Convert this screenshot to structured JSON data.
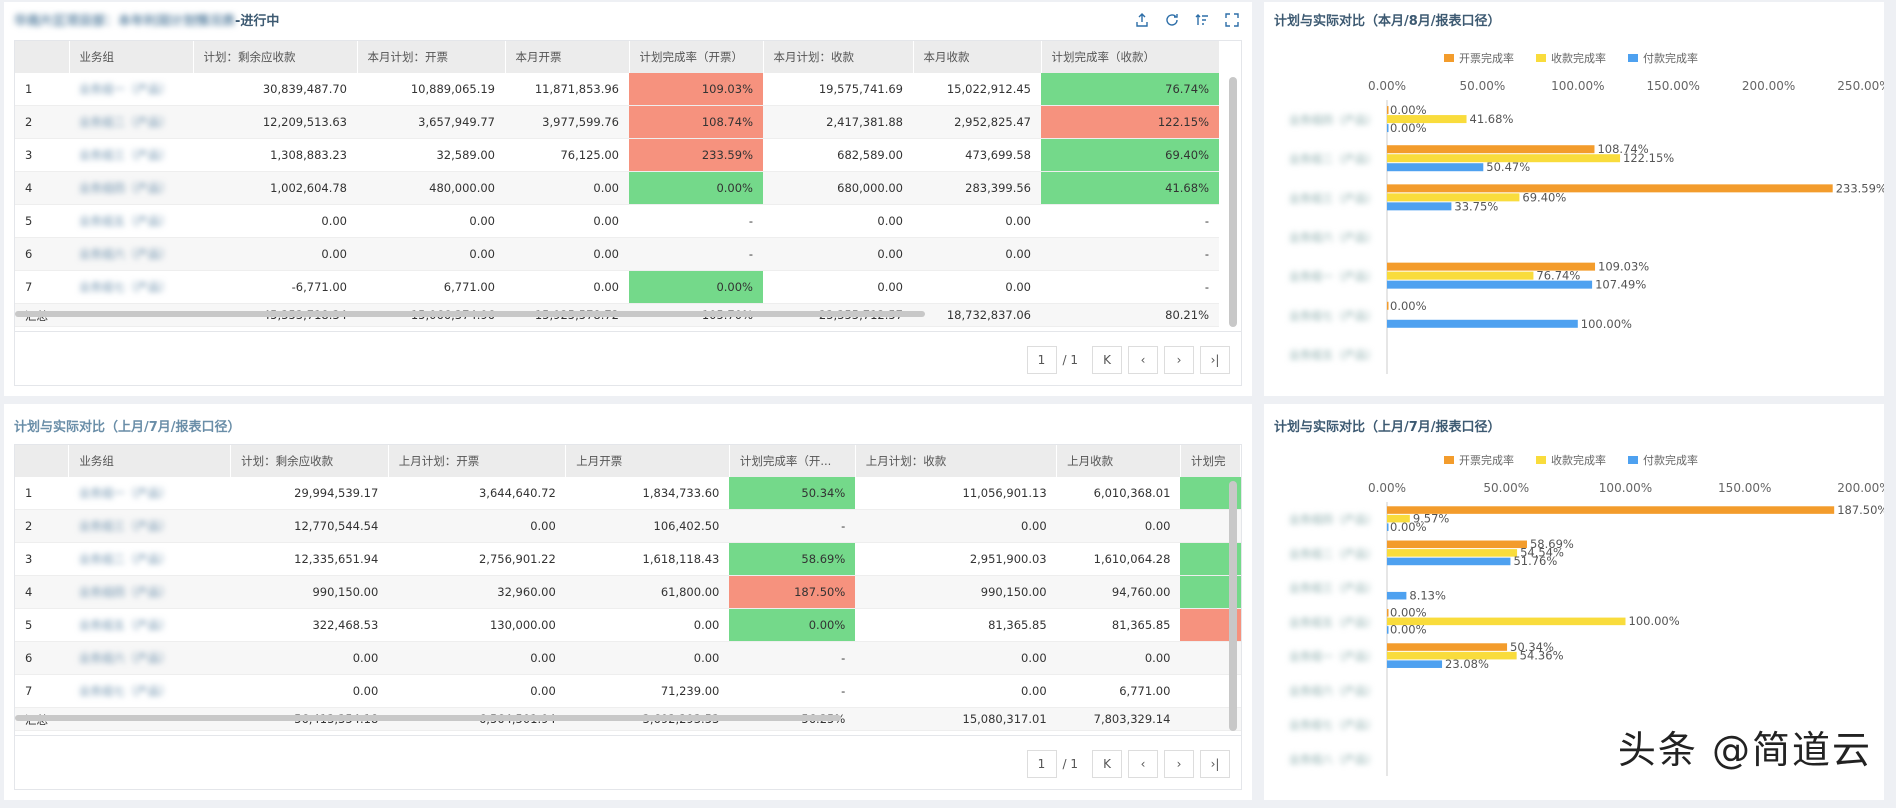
{
  "top_table": {
    "title_prefix": "华南片区项目部：本年利润计划情况表",
    "title_suffix": "-进行中",
    "headers": [
      "",
      "业务组",
      "计划：剩余应收款",
      "本月计划：开票",
      "本月开票",
      "计划完成率（开票）",
      "本月计划：收款",
      "本月收款",
      "计划完成率（收款）"
    ],
    "rows": [
      {
        "idx": "1",
        "group": "业务组一（产品）",
        "v1": "30,839,487.70",
        "v2": "10,889,065.19",
        "v3": "11,871,853.96",
        "r1": "109.03%",
        "r1c": "red",
        "v4": "19,575,741.69",
        "v5": "15,022,912.45",
        "r2": "76.74%",
        "r2c": "green"
      },
      {
        "idx": "2",
        "group": "业务组二（产品）",
        "v1": "12,209,513.63",
        "v2": "3,657,949.77",
        "v3": "3,977,599.76",
        "r1": "108.74%",
        "r1c": "red",
        "v4": "2,417,381.88",
        "v5": "2,952,825.47",
        "r2": "122.15%",
        "r2c": "red"
      },
      {
        "idx": "3",
        "group": "业务组三（产品）",
        "v1": "1,308,883.23",
        "v2": "32,589.00",
        "v3": "76,125.00",
        "r1": "233.59%",
        "r1c": "red",
        "v4": "682,589.00",
        "v5": "473,699.58",
        "r2": "69.40%",
        "r2c": "green"
      },
      {
        "idx": "4",
        "group": "业务组四（产品）",
        "v1": "1,002,604.78",
        "v2": "480,000.00",
        "v3": "0.00",
        "r1": "0.00%",
        "r1c": "green",
        "v4": "680,000.00",
        "v5": "283,399.56",
        "r2": "41.68%",
        "r2c": "green"
      },
      {
        "idx": "5",
        "group": "业务组五（产品）",
        "v1": "0.00",
        "v2": "0.00",
        "v3": "0.00",
        "r1": "-",
        "r1c": "",
        "v4": "0.00",
        "v5": "0.00",
        "r2": "-",
        "r2c": ""
      },
      {
        "idx": "6",
        "group": "业务组六（产品）",
        "v1": "0.00",
        "v2": "0.00",
        "v3": "0.00",
        "r1": "-",
        "r1c": "",
        "v4": "0.00",
        "v5": "0.00",
        "r2": "-",
        "r2c": ""
      },
      {
        "idx": "7",
        "group": "业务组七（产品）",
        "v1": "-6,771.00",
        "v2": "6,771.00",
        "v3": "0.00",
        "r1": "0.00%",
        "r1c": "green",
        "v4": "0.00",
        "v5": "0.00",
        "r2": "-",
        "r2c": ""
      }
    ],
    "total": {
      "idx": "汇总",
      "group": "",
      "v1": "45,353,718.34",
      "v2": "15,066,374.96",
      "v3": "15,925,578.72",
      "r1": "105.70%",
      "v4": "23,355,712.57",
      "v5": "18,732,837.06",
      "r2": "80.21%"
    },
    "pager": {
      "page": "1",
      "total": "/ 1"
    }
  },
  "bottom_table": {
    "title": "计划与实际对比（上月/7月/报表口径）",
    "headers": [
      "",
      "业务组",
      "计划：剩余应收款",
      "上月计划：开票",
      "上月开票",
      "计划完成率（开...",
      "上月计划：收款",
      "上月收款",
      "计划完"
    ],
    "rows": [
      {
        "idx": "1",
        "group": "业务组一（产品）",
        "v1": "29,994,539.17",
        "v2": "3,644,640.72",
        "v3": "1,834,733.60",
        "r1": "50.34%",
        "r1c": "green",
        "v4": "11,056,901.13",
        "v5": "6,010,368.01",
        "r2": "",
        "r2c": "green"
      },
      {
        "idx": "2",
        "group": "业务组三（产品）",
        "v1": "12,770,544.54",
        "v2": "0.00",
        "v3": "106,402.50",
        "r1": "-",
        "r1c": "",
        "v4": "0.00",
        "v5": "0.00",
        "r2": "",
        "r2c": ""
      },
      {
        "idx": "3",
        "group": "业务组二（产品）",
        "v1": "12,335,651.94",
        "v2": "2,756,901.22",
        "v3": "1,618,118.43",
        "r1": "58.69%",
        "r1c": "green",
        "v4": "2,951,900.03",
        "v5": "1,610,064.28",
        "r2": "",
        "r2c": "green"
      },
      {
        "idx": "4",
        "group": "业务组四（产品）",
        "v1": "990,150.00",
        "v2": "32,960.00",
        "v3": "61,800.00",
        "r1": "187.50%",
        "r1c": "red",
        "v4": "990,150.00",
        "v5": "94,760.00",
        "r2": "",
        "r2c": "green"
      },
      {
        "idx": "5",
        "group": "业务组五（产品）",
        "v1": "322,468.53",
        "v2": "130,000.00",
        "v3": "0.00",
        "r1": "0.00%",
        "r1c": "green",
        "v4": "81,365.85",
        "v5": "81,365.85",
        "r2": "",
        "r2c": "red"
      },
      {
        "idx": "6",
        "group": "业务组六（产品）",
        "v1": "0.00",
        "v2": "0.00",
        "v3": "0.00",
        "r1": "-",
        "r1c": "",
        "v4": "0.00",
        "v5": "0.00",
        "r2": "",
        "r2c": ""
      },
      {
        "idx": "7",
        "group": "业务组七（产品）",
        "v1": "0.00",
        "v2": "0.00",
        "v3": "71,239.00",
        "r1": "-",
        "r1c": "",
        "v4": "0.00",
        "v5": "6,771.00",
        "r2": "",
        "r2c": ""
      }
    ],
    "total": {
      "idx": "汇总",
      "group": "",
      "v1": "56,413,354.18",
      "v2": "6,564,501.94",
      "v3": "3,692,293.53",
      "r1": "56.25%",
      "v4": "15,080,317.01",
      "v5": "7,803,329.14",
      "r2": ""
    },
    "pager": {
      "page": "1",
      "total": "/ 1"
    }
  },
  "chart_data": [
    {
      "type": "bar",
      "orientation": "horizontal",
      "title": "计划与实际对比（本月/8月/报表口径）",
      "categories": [
        "业务组四（产品）",
        "业务组二（产品）",
        "业务组三（产品）",
        "业务组六（产品）",
        "业务组一（产品）",
        "业务组七（产品）",
        "业务组五（产品）"
      ],
      "xlim": [
        0,
        250
      ],
      "ticks": [
        "0.00%",
        "50.00%",
        "100.00%",
        "150.00%",
        "200.00%",
        "250.00%"
      ],
      "legend_position": "top",
      "series": [
        {
          "name": "开票完成率",
          "color": "#f39c2c",
          "values": [
            0,
            108.74,
            233.59,
            null,
            109.03,
            0,
            null
          ],
          "labels": [
            "0.00%",
            "108.74%",
            "233.59%",
            "",
            "109.03%",
            "0.00%",
            ""
          ]
        },
        {
          "name": "收款完成率",
          "color": "#f9dc3c",
          "values": [
            41.68,
            122.15,
            69.4,
            null,
            76.74,
            null,
            null
          ],
          "labels": [
            "41.68%",
            "122.15%",
            "69.40%",
            "",
            "76.74%",
            "",
            ""
          ]
        },
        {
          "name": "付款完成率",
          "color": "#4ea1f0",
          "values": [
            0,
            50.47,
            33.75,
            null,
            107.49,
            100,
            null
          ],
          "labels": [
            "0.00%",
            "50.47%",
            "33.75%",
            "",
            "107.49%",
            "100.00%",
            ""
          ]
        }
      ]
    },
    {
      "type": "bar",
      "orientation": "horizontal",
      "title": "计划与实际对比（上月/7月/报表口径）",
      "categories": [
        "业务组四（产品）",
        "业务组二（产品）",
        "业务组三（产品）",
        "业务组五（产品）",
        "业务组一（产品）",
        "业务组六（产品）",
        "业务组七（产品）",
        "业务组八（产品）"
      ],
      "xlim": [
        0,
        200
      ],
      "ticks": [
        "0.00%",
        "50.00%",
        "100.00%",
        "150.00%",
        "200.00%"
      ],
      "legend_position": "top",
      "series": [
        {
          "name": "开票完成率",
          "color": "#f39c2c",
          "values": [
            187.5,
            58.69,
            null,
            0,
            50.34,
            null,
            null,
            null
          ],
          "labels": [
            "187.50%",
            "58.69%",
            "",
            "0.00%",
            "50.34%",
            "",
            "",
            ""
          ]
        },
        {
          "name": "收款完成率",
          "color": "#f9dc3c",
          "values": [
            9.57,
            54.54,
            null,
            100,
            54.36,
            null,
            null,
            null
          ],
          "labels": [
            "9.57%",
            "54.54%",
            "",
            "100.00%",
            "54.36%",
            "",
            "",
            ""
          ]
        },
        {
          "name": "付款完成率",
          "color": "#4ea1f0",
          "values": [
            0,
            51.76,
            8.13,
            0,
            23.08,
            null,
            null,
            null
          ],
          "labels": [
            "0.00%",
            "51.76%",
            "8.13%",
            "0.00%",
            "23.08%",
            "",
            "",
            ""
          ]
        }
      ]
    }
  ],
  "watermark": "头条 @简道云"
}
